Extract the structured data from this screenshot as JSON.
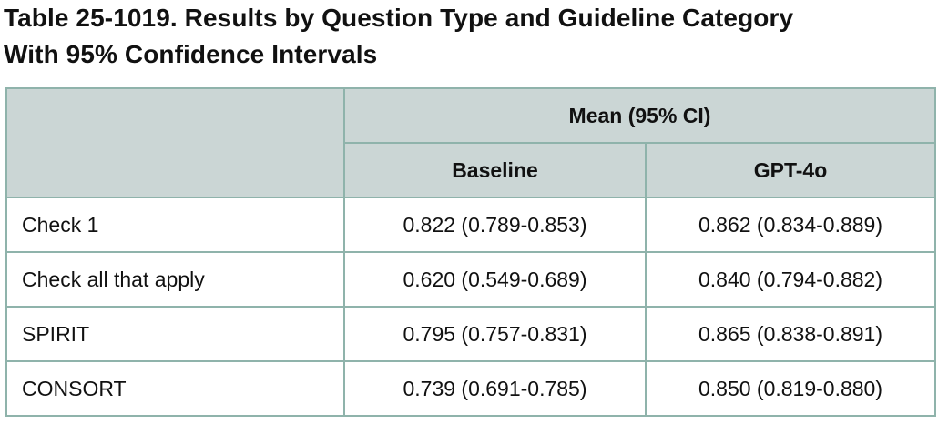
{
  "title": {
    "line1": "Table 25-1019. Results by Question Type and Guideline Category",
    "line2": "With 95% Confidence Intervals"
  },
  "table": {
    "group_header": "Mean (95% CI)",
    "columns": [
      "Baseline",
      "GPT-4o"
    ],
    "rows": [
      {
        "label": "Check 1",
        "baseline": "0.822 (0.789-0.853)",
        "gpt4o": "0.862 (0.834-0.889)"
      },
      {
        "label": "Check all that apply",
        "baseline": "0.620 (0.549-0.689)",
        "gpt4o": "0.840 (0.794-0.882)"
      },
      {
        "label": "SPIRIT",
        "baseline": "0.795 (0.757-0.831)",
        "gpt4o": "0.865 (0.838-0.891)"
      },
      {
        "label": "CONSORT",
        "baseline": "0.739 (0.691-0.785)",
        "gpt4o": "0.850 (0.819-0.880)"
      }
    ]
  },
  "colors": {
    "header_fill": "#cbd6d5",
    "border": "#8fb3ab"
  }
}
